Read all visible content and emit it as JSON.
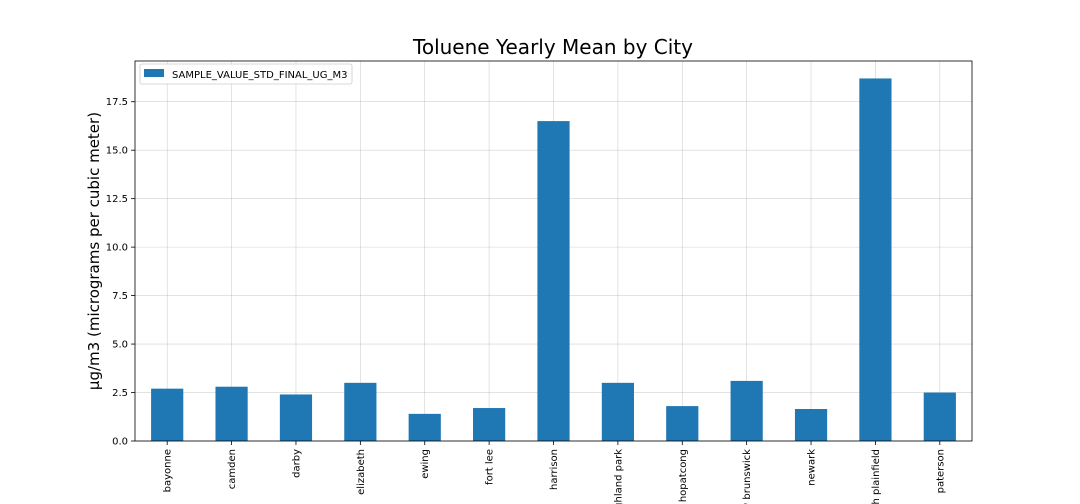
{
  "chart_data": {
    "type": "bar",
    "title": "Toluene Yearly Mean by City",
    "xlabel": "",
    "ylabel": "µg/m3 (micrograms per cubic meter)",
    "categories": [
      "bayonne",
      "camden",
      "darby",
      "elizabeth",
      "ewing",
      "fort lee",
      "harrison",
      "highland park",
      "hopatcong",
      "new brunswick",
      "newark",
      "north plainfield",
      "paterson"
    ],
    "series": [
      {
        "name": "SAMPLE_VALUE_STD_FINAL_UG_M3",
        "color": "#1f77b4",
        "values": [
          2.7,
          2.8,
          2.4,
          3.0,
          1.4,
          1.7,
          16.5,
          3.0,
          1.8,
          3.1,
          1.65,
          18.7,
          2.5
        ]
      }
    ],
    "ylim": [
      0,
      19.6
    ],
    "yticks": [
      "0.0",
      "2.5",
      "5.0",
      "7.5",
      "10.0",
      "12.5",
      "15.0",
      "17.5"
    ],
    "ytick_values": [
      0,
      2.5,
      5.0,
      7.5,
      10.0,
      12.5,
      15.0,
      17.5
    ],
    "grid": true,
    "legend_position": "upper-left"
  }
}
